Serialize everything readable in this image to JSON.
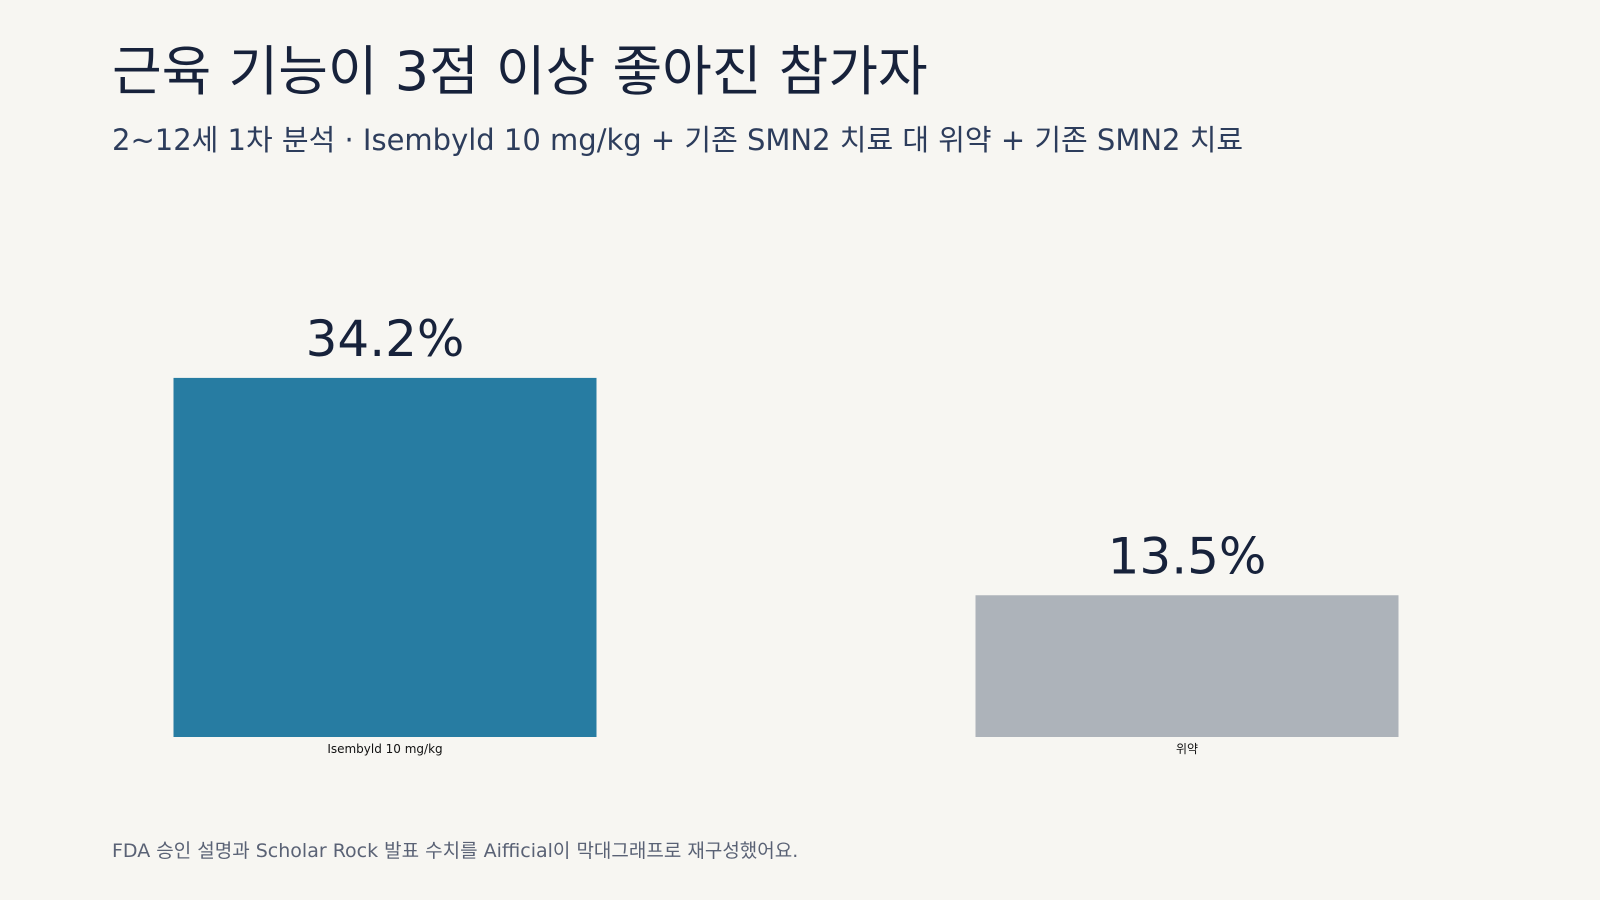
{
  "chart_data": {
    "type": "bar",
    "title": "근육 기능이 3점 이상 좋아진 참가자",
    "subtitle": "2~12세 1차 분석 · Isembyld 10 mg/kg + 기존 SMN2 치료 대 위약 + 기존 SMN2 치료",
    "categories": [
      "Isembyld 10 mg/kg",
      "위약"
    ],
    "values": [
      34.2,
      13.5
    ],
    "value_labels": [
      "34.2%",
      "13.5%"
    ],
    "colors": [
      "#277ca2",
      "#adb3ba"
    ],
    "ylim": [
      0,
      40
    ],
    "grid": false,
    "source": "FDA 승인 설명과 Scholar Rock 발표 수치를 Aifficial이 막대그래프로 재구성했어요."
  }
}
